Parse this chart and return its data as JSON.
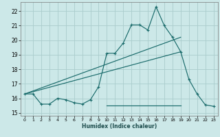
{
  "xlabel": "Humidex (Indice chaleur)",
  "bg_color": "#cce8e8",
  "grid_color": "#aacccc",
  "line_color": "#1a6b6b",
  "xlim": [
    -0.5,
    23.5
  ],
  "ylim": [
    14.8,
    22.6
  ],
  "xticks": [
    0,
    1,
    2,
    3,
    4,
    5,
    6,
    7,
    8,
    9,
    10,
    11,
    12,
    13,
    14,
    15,
    16,
    17,
    18,
    19,
    20,
    21,
    22,
    23
  ],
  "yticks": [
    15,
    16,
    17,
    18,
    19,
    20,
    21,
    22
  ],
  "main_line_x": [
    0,
    1,
    2,
    3,
    4,
    5,
    6,
    7,
    8,
    9,
    10,
    11,
    12,
    13,
    14,
    15,
    16,
    17,
    18,
    19,
    20,
    21,
    22,
    23
  ],
  "main_line_y": [
    16.3,
    16.3,
    15.6,
    15.6,
    16.0,
    15.9,
    15.7,
    15.6,
    15.9,
    16.8,
    19.1,
    19.1,
    19.8,
    21.05,
    21.05,
    20.7,
    22.3,
    21.0,
    20.2,
    19.2,
    17.3,
    16.3,
    15.55,
    15.45
  ],
  "reg_line1_x": [
    0,
    19
  ],
  "reg_line1_y": [
    16.3,
    20.2
  ],
  "reg_line2_x": [
    0,
    19
  ],
  "reg_line2_y": [
    16.3,
    19.2
  ],
  "flat_line_x": [
    10,
    19
  ],
  "flat_line_y": [
    15.5,
    15.5
  ]
}
